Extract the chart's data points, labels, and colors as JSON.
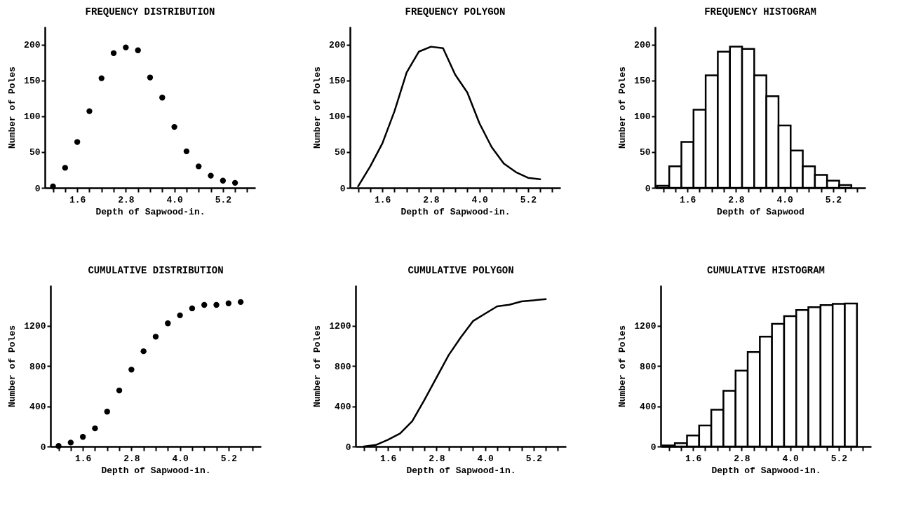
{
  "chart_data": [
    {
      "type": "scatter",
      "title": "FREQUENCY DISTRIBUTION",
      "xlabel": "Depth of Sapwood-in.",
      "ylabel": "Number of Poles",
      "marker": "circle",
      "color": "#000000",
      "x": [
        1.0,
        1.3,
        1.6,
        1.9,
        2.2,
        2.5,
        2.8,
        3.1,
        3.4,
        3.7,
        4.0,
        4.3,
        4.6,
        4.9,
        5.2,
        5.5
      ],
      "values": [
        2,
        28,
        64,
        107,
        153,
        188,
        196,
        192,
        154,
        126,
        85,
        51,
        30,
        17,
        10,
        7
      ],
      "xlim": [
        0.8,
        6.0
      ],
      "xticks": [
        {
          "value": 1.0,
          "label": null
        },
        {
          "value": 1.3,
          "label": null
        },
        {
          "value": 1.6,
          "label": "1.6"
        },
        {
          "value": 1.9,
          "label": null
        },
        {
          "value": 2.2,
          "label": null
        },
        {
          "value": 2.5,
          "label": null
        },
        {
          "value": 2.8,
          "label": "2.8"
        },
        {
          "value": 3.1,
          "label": null
        },
        {
          "value": 3.4,
          "label": null
        },
        {
          "value": 3.7,
          "label": null
        },
        {
          "value": 4.0,
          "label": "4.0"
        },
        {
          "value": 4.3,
          "label": null
        },
        {
          "value": 4.6,
          "label": null
        },
        {
          "value": 4.9,
          "label": null
        },
        {
          "value": 5.2,
          "label": "5.2"
        },
        {
          "value": 5.5,
          "label": null
        },
        {
          "value": 5.8,
          "label": null
        }
      ],
      "ylim": [
        0,
        225
      ],
      "yticks": [
        0,
        50,
        100,
        150,
        200
      ]
    },
    {
      "type": "line",
      "title": "FREQUENCY POLYGON",
      "xlabel": "Depth of Sapwood-in.",
      "ylabel": "Number of Poles",
      "line_style": "solid",
      "color": "#000000",
      "x": [
        1.0,
        1.3,
        1.6,
        1.9,
        2.2,
        2.5,
        2.8,
        3.1,
        3.4,
        3.7,
        4.0,
        4.3,
        4.6,
        4.9,
        5.2,
        5.5
      ],
      "values": [
        2,
        30,
        62,
        107,
        161,
        190,
        197,
        195,
        158,
        133,
        90,
        57,
        34,
        22,
        14,
        12
      ],
      "xlim": [
        0.8,
        6.0
      ],
      "xticks": [
        {
          "value": 1.0,
          "label": null
        },
        {
          "value": 1.3,
          "label": null
        },
        {
          "value": 1.6,
          "label": "1.6"
        },
        {
          "value": 1.9,
          "label": null
        },
        {
          "value": 2.2,
          "label": null
        },
        {
          "value": 2.5,
          "label": null
        },
        {
          "value": 2.8,
          "label": "2.8"
        },
        {
          "value": 3.1,
          "label": null
        },
        {
          "value": 3.4,
          "label": null
        },
        {
          "value": 3.7,
          "label": null
        },
        {
          "value": 4.0,
          "label": "4.0"
        },
        {
          "value": 4.3,
          "label": null
        },
        {
          "value": 4.6,
          "label": null
        },
        {
          "value": 4.9,
          "label": null
        },
        {
          "value": 5.2,
          "label": "5.2"
        },
        {
          "value": 5.5,
          "label": null
        },
        {
          "value": 5.8,
          "label": null
        }
      ],
      "ylim": [
        0,
        225
      ],
      "yticks": [
        0,
        50,
        100,
        150,
        200
      ]
    },
    {
      "type": "histogram",
      "title": "FREQUENCY HISTOGRAM",
      "xlabel": "Depth of Sapwood",
      "ylabel": "Number of Poles",
      "color": "#000000",
      "bins": [
        0.85,
        1.15,
        1.45,
        1.75,
        2.05,
        2.35,
        2.65,
        2.95,
        3.25,
        3.55,
        3.85,
        4.15,
        4.45,
        4.75,
        5.05,
        5.35,
        5.65
      ],
      "values": [
        3,
        30,
        64,
        109,
        157,
        190,
        197,
        194,
        157,
        128,
        87,
        52,
        30,
        18,
        10,
        4
      ],
      "xlim": [
        0.8,
        6.0
      ],
      "xticks": [
        {
          "value": 1.0,
          "label": null
        },
        {
          "value": 1.3,
          "label": null
        },
        {
          "value": 1.6,
          "label": "1.6"
        },
        {
          "value": 1.9,
          "label": null
        },
        {
          "value": 2.2,
          "label": null
        },
        {
          "value": 2.5,
          "label": null
        },
        {
          "value": 2.8,
          "label": "2.8"
        },
        {
          "value": 3.1,
          "label": null
        },
        {
          "value": 3.4,
          "label": null
        },
        {
          "value": 3.7,
          "label": null
        },
        {
          "value": 4.0,
          "label": "4.0"
        },
        {
          "value": 4.3,
          "label": null
        },
        {
          "value": 4.6,
          "label": null
        },
        {
          "value": 4.9,
          "label": null
        },
        {
          "value": 5.2,
          "label": "5.2"
        },
        {
          "value": 5.5,
          "label": null
        },
        {
          "value": 5.8,
          "label": null
        }
      ],
      "ylim": [
        0,
        225
      ],
      "yticks": [
        0,
        50,
        100,
        150,
        200
      ]
    },
    {
      "type": "scatter",
      "title": "CUMULATIVE DISTRIBUTION",
      "xlabel": "Depth of Sapwood-in.",
      "ylabel": "Number of Poles",
      "marker": "circle",
      "color": "#000000",
      "x": [
        1.0,
        1.3,
        1.6,
        1.9,
        2.2,
        2.5,
        2.8,
        3.1,
        3.4,
        3.7,
        4.0,
        4.3,
        4.6,
        4.9,
        5.2,
        5.5
      ],
      "values": [
        5,
        39,
        96,
        180,
        346,
        556,
        763,
        945,
        1090,
        1223,
        1302,
        1371,
        1405,
        1405,
        1421,
        1434
      ],
      "xlim": [
        0.8,
        6.0
      ],
      "xticks": [
        {
          "value": 1.0,
          "label": null
        },
        {
          "value": 1.3,
          "label": null
        },
        {
          "value": 1.6,
          "label": "1.6"
        },
        {
          "value": 1.9,
          "label": null
        },
        {
          "value": 2.2,
          "label": null
        },
        {
          "value": 2.5,
          "label": null
        },
        {
          "value": 2.8,
          "label": "2.8"
        },
        {
          "value": 3.1,
          "label": null
        },
        {
          "value": 3.4,
          "label": null
        },
        {
          "value": 3.7,
          "label": null
        },
        {
          "value": 4.0,
          "label": "4.0"
        },
        {
          "value": 4.3,
          "label": null
        },
        {
          "value": 4.6,
          "label": null
        },
        {
          "value": 4.9,
          "label": null
        },
        {
          "value": 5.2,
          "label": "5.2"
        },
        {
          "value": 5.5,
          "label": null
        },
        {
          "value": 5.8,
          "label": null
        }
      ],
      "ylim": [
        0,
        1600
      ],
      "yticks": [
        0,
        400,
        800,
        1200
      ]
    },
    {
      "type": "line",
      "title": "CUMULATIVE POLYGON",
      "xlabel": "Depth of Sapwood-in.",
      "ylabel": "Number of Poles",
      "line_style": "solid",
      "color": "#000000",
      "x": [
        1.0,
        1.3,
        1.6,
        1.9,
        2.2,
        2.5,
        2.8,
        3.1,
        3.4,
        3.7,
        4.0,
        4.3,
        4.6,
        4.9,
        5.2,
        5.5
      ],
      "values": [
        0,
        15,
        67,
        129,
        251,
        462,
        684,
        907,
        1084,
        1244,
        1318,
        1391,
        1407,
        1440,
        1451,
        1462
      ],
      "xlim": [
        0.8,
        6.0
      ],
      "xticks": [
        {
          "value": 1.0,
          "label": null
        },
        {
          "value": 1.3,
          "label": null
        },
        {
          "value": 1.6,
          "label": "1.6"
        },
        {
          "value": 1.9,
          "label": null
        },
        {
          "value": 2.2,
          "label": null
        },
        {
          "value": 2.5,
          "label": null
        },
        {
          "value": 2.8,
          "label": "2.8"
        },
        {
          "value": 3.1,
          "label": null
        },
        {
          "value": 3.4,
          "label": null
        },
        {
          "value": 3.7,
          "label": null
        },
        {
          "value": 4.0,
          "label": "4.0"
        },
        {
          "value": 4.3,
          "label": null
        },
        {
          "value": 4.6,
          "label": null
        },
        {
          "value": 4.9,
          "label": null
        },
        {
          "value": 5.2,
          "label": "5.2"
        },
        {
          "value": 5.5,
          "label": null
        },
        {
          "value": 5.8,
          "label": null
        }
      ],
      "ylim": [
        0,
        1600
      ],
      "yticks": [
        0,
        400,
        800,
        1200
      ]
    },
    {
      "type": "histogram",
      "title": "CUMULATIVE HISTOGRAM",
      "xlabel": "Depth of Sapwood-in.",
      "ylabel": "Number of Poles",
      "color": "#000000",
      "bins": [
        0.85,
        1.15,
        1.45,
        1.75,
        2.05,
        2.35,
        2.65,
        2.95,
        3.25,
        3.55,
        3.85,
        4.15,
        4.45,
        4.75,
        5.05,
        5.35,
        5.65
      ],
      "values": [
        11,
        33,
        110,
        208,
        366,
        553,
        753,
        937,
        1090,
        1217,
        1294,
        1354,
        1382,
        1404,
        1415,
        1420
      ],
      "xlim": [
        0.8,
        6.0
      ],
      "xticks": [
        {
          "value": 1.0,
          "label": null
        },
        {
          "value": 1.3,
          "label": null
        },
        {
          "value": 1.6,
          "label": "1.6"
        },
        {
          "value": 1.9,
          "label": null
        },
        {
          "value": 2.2,
          "label": null
        },
        {
          "value": 2.5,
          "label": null
        },
        {
          "value": 2.8,
          "label": "2.8"
        },
        {
          "value": 3.1,
          "label": null
        },
        {
          "value": 3.4,
          "label": null
        },
        {
          "value": 3.7,
          "label": null
        },
        {
          "value": 4.0,
          "label": "4.0"
        },
        {
          "value": 4.3,
          "label": null
        },
        {
          "value": 4.6,
          "label": null
        },
        {
          "value": 4.9,
          "label": null
        },
        {
          "value": 5.2,
          "label": "5.2"
        },
        {
          "value": 5.5,
          "label": null
        },
        {
          "value": 5.8,
          "label": null
        }
      ],
      "ylim": [
        0,
        1600
      ],
      "yticks": [
        0,
        400,
        800,
        1200
      ]
    }
  ]
}
